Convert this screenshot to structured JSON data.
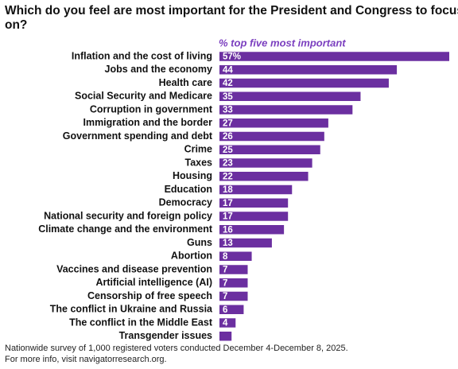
{
  "chart_data": {
    "type": "bar",
    "orientation": "horizontal",
    "title": "Which do you feel are most important for the President and Congress to focus on?",
    "subtitle": "% top five most important",
    "categories": [
      "Inflation and the cost of living",
      "Jobs and the economy",
      "Health care",
      "Social Security and Medicare",
      "Corruption in government",
      "Immigration and the border",
      "Government spending and debt",
      "Crime",
      "Taxes",
      "Housing",
      "Education",
      "Democracy",
      "National security and foreign policy",
      "Climate change and the environment",
      "Guns",
      "Abortion",
      "Vaccines and disease prevention",
      "Artificial intelligence (AI)",
      "Censorship of free speech",
      "The conflict in Ukraine and Russia",
      "The conflict in the Middle East",
      "Transgender issues"
    ],
    "values": [
      57,
      44,
      42,
      35,
      33,
      27,
      26,
      25,
      23,
      22,
      18,
      17,
      17,
      16,
      13,
      8,
      7,
      7,
      7,
      6,
      4,
      3
    ],
    "value_labels": [
      "57%",
      "44",
      "42",
      "35",
      "33",
      "27",
      "26",
      "25",
      "23",
      "22",
      "18",
      "17",
      "17",
      "16",
      "13",
      "8",
      "7",
      "7",
      "7",
      "6",
      "4",
      null
    ],
    "color": "#6b2fa0",
    "notes": [
      "Nationwide survey of 1,000 registered voters conducted December 4-December 8, 2025.",
      "For more info, visit navigatorresearch.org."
    ]
  }
}
